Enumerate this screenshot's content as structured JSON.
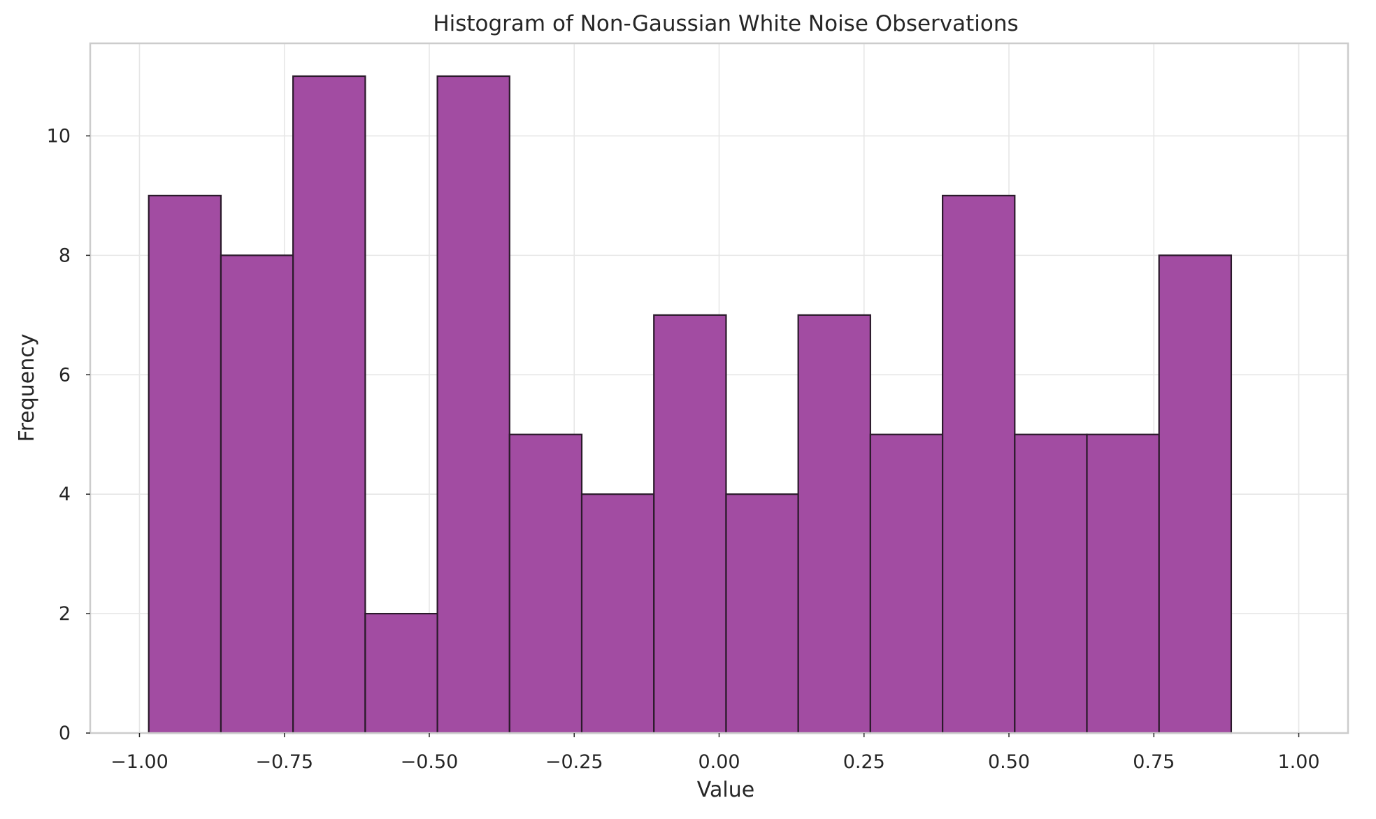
{
  "chart_data": {
    "type": "bar",
    "subtype": "histogram",
    "title": "Histogram of Non-Gaussian White Noise Observations",
    "xlabel": "Value",
    "ylabel": "Frequency",
    "bin_edges": [
      -0.984,
      -0.8595,
      -0.735,
      -0.6105,
      -0.486,
      -0.3615,
      -0.237,
      -0.1125,
      0.012,
      0.1365,
      0.261,
      0.3855,
      0.51,
      0.6345,
      0.759,
      0.8835
    ],
    "bin_edges_note": "",
    "values": [
      9,
      8,
      11,
      2,
      11,
      5,
      4,
      7,
      4,
      7,
      5,
      9,
      5,
      5,
      8
    ],
    "xlim": [
      -1.085,
      1.085
    ],
    "ylim": [
      0,
      11.55
    ],
    "x_ticks": [
      -1.0,
      -0.75,
      -0.5,
      -0.25,
      0.0,
      0.25,
      0.5,
      0.75,
      1.0
    ],
    "x_tick_labels": [
      "−1.00",
      "−0.75",
      "−0.50",
      "−0.25",
      "0.00",
      "0.25",
      "0.50",
      "0.75",
      "1.00"
    ],
    "y_ticks": [
      0,
      2,
      4,
      6,
      8,
      10
    ],
    "y_tick_labels": [
      "0",
      "2",
      "4",
      "6",
      "8",
      "10"
    ],
    "grid": true,
    "legend": "none",
    "colors": {
      "bar_fill": "#a24ca2",
      "bar_edge": "#2b1a2b",
      "grid": "#e6e6e6",
      "spine": "#cccccc"
    }
  }
}
